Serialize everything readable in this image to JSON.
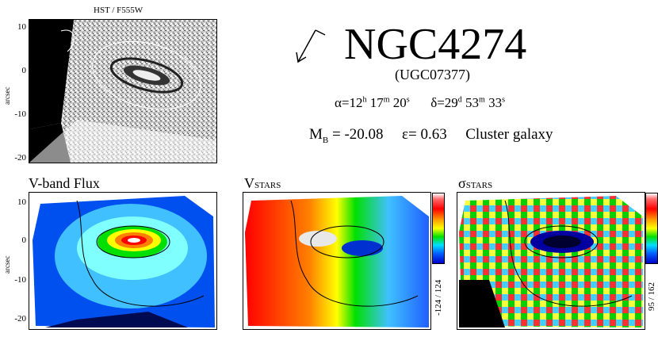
{
  "hst_panel": {
    "title": "HST / F555W",
    "yticks": [
      "10",
      "0",
      "-10",
      "-20"
    ],
    "ylabel": "arcsec"
  },
  "info": {
    "galaxy_name": "NGC4274",
    "alt_name": "(UGC07377)",
    "ra_prefix": "α=12",
    "ra_h": "h",
    "ra_mid1": " 17",
    "ra_m": "m",
    "ra_mid2": " 20",
    "ra_s": "s",
    "dec_prefix": "δ=29",
    "dec_d": "d",
    "dec_mid1": " 53",
    "dec_m": "m",
    "dec_mid2": " 33",
    "dec_s": "s",
    "mag_label": "M",
    "mag_sub": "B",
    "mag_value": " = -20.08",
    "ellipticity": "ε= 0.63",
    "environment": "Cluster galaxy"
  },
  "maps": {
    "flux_title": "V-band Flux",
    "vel_title_main": "V",
    "vel_title_sub": "STARS",
    "sig_title_main": "σ",
    "sig_title_sub": "STARS",
    "yticks": [
      "10",
      "0",
      "-10",
      "-20"
    ],
    "ylabel": "arcsec",
    "vel_range": "-124 / 124",
    "sig_range": "95 / 162"
  },
  "colors": {
    "colorbar_top": "#ffffff",
    "colorbar_red": "#ff0000",
    "colorbar_yellow": "#ffff00",
    "colorbar_green": "#00e000",
    "colorbar_blue": "#0000c8"
  }
}
